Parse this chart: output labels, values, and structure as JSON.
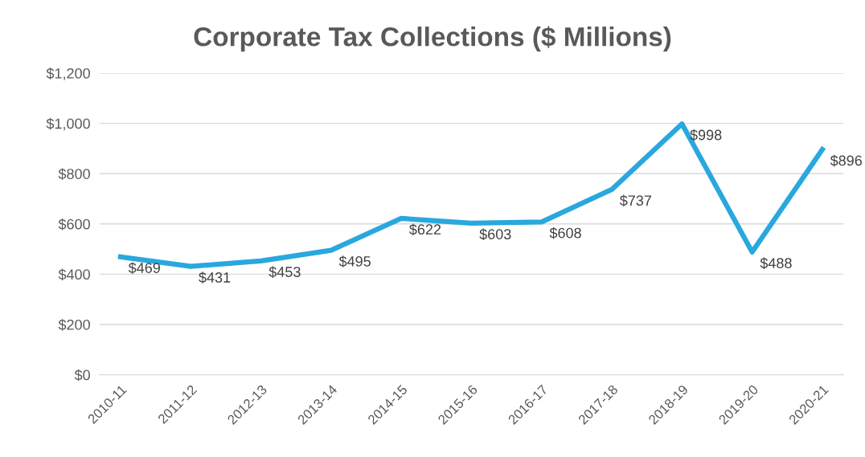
{
  "chart_data": {
    "type": "line",
    "title": "Corporate Tax Collections ($ Millions)",
    "categories": [
      "2010-11",
      "2011-12",
      "2012-13",
      "2013-14",
      "2014-15",
      "2015-16",
      "2016-17",
      "2017-18",
      "2018-19",
      "2019-20",
      "2020-21"
    ],
    "series": [
      {
        "color": "#29a8de",
        "values": [
          469,
          431,
          453,
          495,
          622,
          603,
          608,
          737,
          998,
          488,
          896
        ],
        "value_labels": [
          "$469",
          "$431",
          "$453",
          "$495",
          "$622",
          "$603",
          "$608",
          "$737",
          "$998",
          "$488",
          "$896"
        ]
      }
    ],
    "ylim": [
      0,
      1200
    ],
    "yticks": [
      {
        "value": 0,
        "label": "$0"
      },
      {
        "value": 200,
        "label": "$200"
      },
      {
        "value": 400,
        "label": "$400"
      },
      {
        "value": 600,
        "label": "$600"
      },
      {
        "value": 800,
        "label": "$800"
      },
      {
        "value": 1000,
        "label": "$1,000"
      },
      {
        "value": 1200,
        "label": "$1,200"
      }
    ],
    "grid": "y",
    "marker": "none",
    "line_style": "solid",
    "legend": false
  }
}
